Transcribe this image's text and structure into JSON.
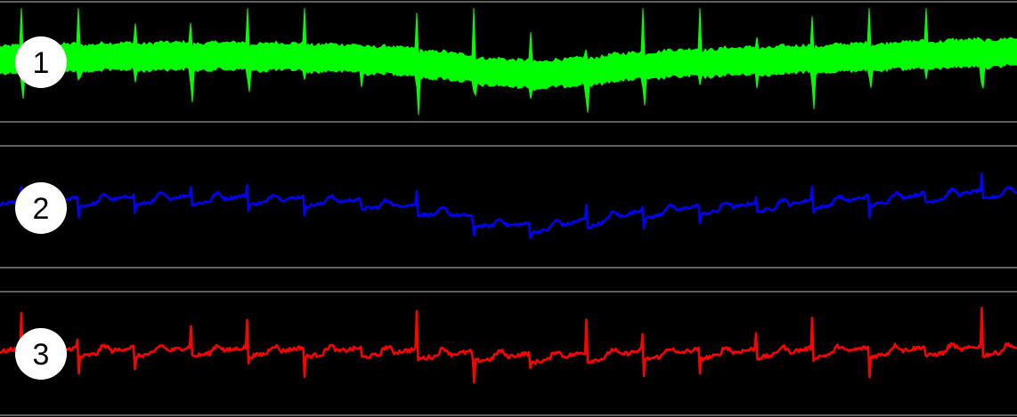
{
  "chart_data": {
    "type": "line",
    "title": "",
    "xlabel": "",
    "ylabel": "",
    "grid": false,
    "legend": "none",
    "background": "#000000",
    "divider_color": "#808080",
    "series": [
      {
        "label": "1",
        "color": "#00ff00",
        "style": "filled-envelope",
        "ylim": [
          -1,
          1
        ],
        "baseline": 0.0,
        "wander": 0.35,
        "noise_amplitude": 0.55,
        "spike_amplitude": 0.9,
        "beats": 18
      },
      {
        "label": "2",
        "color": "#0000ff",
        "style": "line",
        "ylim": [
          -1,
          1
        ],
        "baseline": 0.0,
        "wander": 0.55,
        "noise_amplitude": 0.06,
        "spike_amplitude": 0.45,
        "beats": 18
      },
      {
        "label": "3",
        "color": "#ff0000",
        "style": "line",
        "ylim": [
          -1,
          1
        ],
        "baseline": 0.0,
        "wander": 0.12,
        "noise_amplitude": 0.08,
        "spike_amplitude": 0.85,
        "beats": 18
      }
    ]
  }
}
